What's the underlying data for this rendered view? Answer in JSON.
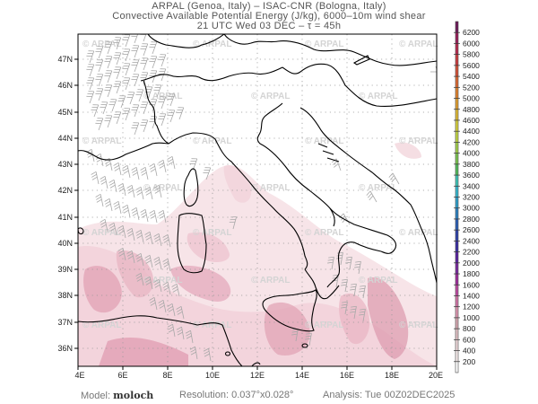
{
  "header": {
    "line1": "ARPAL (Genoa, Italy)  –  ISAC-CNR (Bologna, Italy)",
    "line2": "Convective Available Potential Energy (J/kg), 6000–10m wind shear",
    "line3": "21 UTC Wed 03 DEC  –  τ = 45h"
  },
  "map": {
    "region": "Italy / Central Mediterranean",
    "x_ticks": [
      "4E",
      "6E",
      "8E",
      "10E",
      "12E",
      "14E",
      "16E",
      "18E",
      "20E"
    ],
    "y_ticks": [
      "47N",
      "46N",
      "45N",
      "44N",
      "43N",
      "42N",
      "41N",
      "40N",
      "39N",
      "38N",
      "37N",
      "36N"
    ],
    "watermark": "© ARPAL",
    "gridlines": "dotted",
    "fill_colors": {
      "low": "#f6e0e4",
      "mid": "#eab7c4",
      "high": "#d98aa2"
    },
    "barb_color": "#a8a8a8",
    "coast_color": "#000000"
  },
  "colorbar": {
    "labels": [
      "6200",
      "6000",
      "5800",
      "5600",
      "5400",
      "5200",
      "5000",
      "4800",
      "4600",
      "4400",
      "4200",
      "4000",
      "3800",
      "3600",
      "3400",
      "3200",
      "3000",
      "2800",
      "2600",
      "2400",
      "2200",
      "2000",
      "1800",
      "1600",
      "1400",
      "1200",
      "1000",
      "800",
      "600",
      "400",
      "200"
    ],
    "colors": [
      "#6e1a5a",
      "#9a1e5a",
      "#b82a4f",
      "#cc3d40",
      "#d65238",
      "#df6a32",
      "#e3842e",
      "#e3a030",
      "#e0bb36",
      "#d8d23e",
      "#c4d844",
      "#a4d24a",
      "#7cc650",
      "#54bc5c",
      "#3ec6b8",
      "#36b8d0",
      "#2fa0cc",
      "#2c82c2",
      "#2b5fb6",
      "#2f42ac",
      "#3a2ea6",
      "#5a22a2",
      "#7a2aa0",
      "#a02e9e",
      "#c04aa4",
      "#d476a8",
      "#de98b2",
      "#d6a8b2",
      "#e2c2c6",
      "#eed8da",
      "#f8eeee",
      "#ffffff"
    ]
  },
  "footer": {
    "model_label": "Model:",
    "model_value": "moloch",
    "resolution": "Resolution: 0.037°x0.028°",
    "analysis": "Analysis: Tue  00Z02DEC2025"
  }
}
